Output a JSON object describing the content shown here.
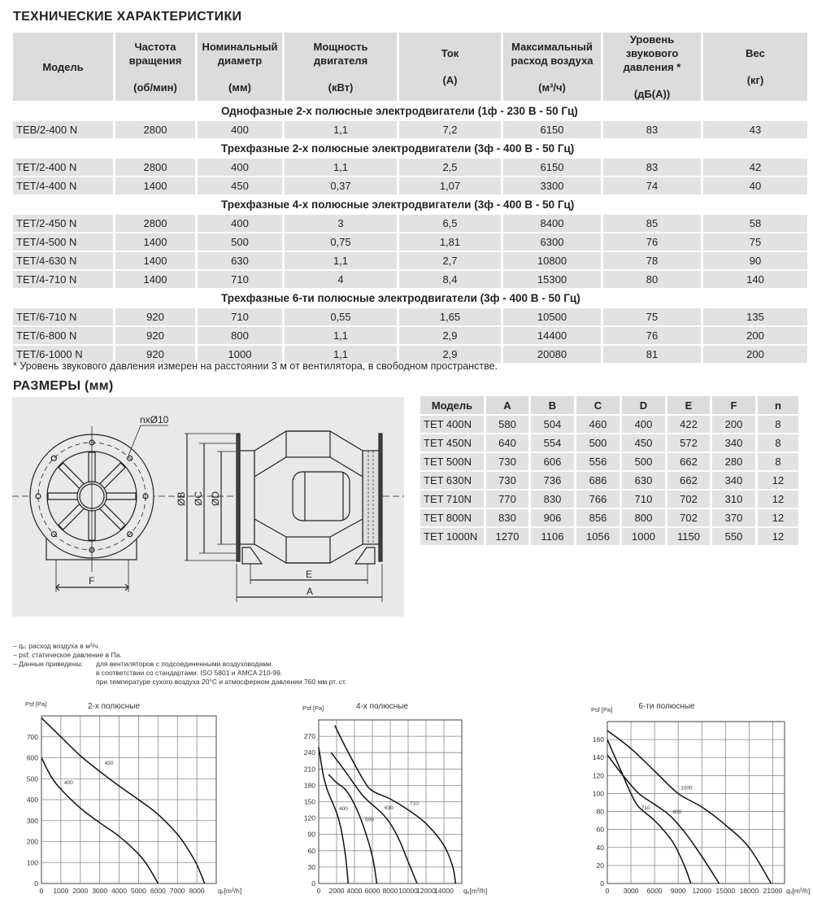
{
  "spec": {
    "title": "ТЕХНИЧЕСКИЕ ХАРАКТЕРИСТИКИ",
    "headers": [
      {
        "label": "Модель",
        "unit": ""
      },
      {
        "label": "Частота вращения",
        "unit": "(об/мин)"
      },
      {
        "label": "Номинальный диаметр",
        "unit": "(мм)"
      },
      {
        "label": "Мощность двигателя",
        "unit": "(кВт)"
      },
      {
        "label": "Ток",
        "unit": "(A)"
      },
      {
        "label": "Максимальный расход воздуха",
        "unit": "(м³/ч)"
      },
      {
        "label": "Уровень звукового давления *",
        "unit": "(дБ(A))"
      },
      {
        "label": "Вес",
        "unit": "(кг)"
      }
    ],
    "sections": [
      {
        "title": "Однофазные 2-х полюсные электродвигатели (1ф - 230 В - 50 Гц)",
        "rows": [
          [
            "TEB/2-400 N",
            "2800",
            "400",
            "1,1",
            "7,2",
            "6150",
            "83",
            "43"
          ]
        ]
      },
      {
        "title": "Трехфазные 2-х полюсные электродвигатели (3ф - 400 В - 50 Гц)",
        "rows": [
          [
            "TET/2-400 N",
            "2800",
            "400",
            "1,1",
            "2,5",
            "6150",
            "83",
            "42"
          ],
          [
            "TET/4-400 N",
            "1400",
            "450",
            "0,37",
            "1,07",
            "3300",
            "74",
            "40"
          ]
        ]
      },
      {
        "title": "Трехфазные 4-х полюсные электродвигатели (3ф - 400 В - 50 Гц)",
        "rows": [
          [
            "TET/2-450 N",
            "2800",
            "400",
            "3",
            "6,5",
            "8400",
            "85",
            "58"
          ],
          [
            "TET/4-500 N",
            "1400",
            "500",
            "0,75",
            "1,81",
            "6300",
            "76",
            "75"
          ],
          [
            "TET/4-630 N",
            "1400",
            "630",
            "1,1",
            "2,7",
            "10800",
            "78",
            "90"
          ],
          [
            "TET/4-710 N",
            "1400",
            "710",
            "4",
            "8,4",
            "15300",
            "80",
            "140"
          ]
        ]
      },
      {
        "title": "Трехфазные 6-ти полюсные электродвигатели (3ф - 400 В - 50 Гц)",
        "rows": [
          [
            "TET/6-710 N",
            "920",
            "710",
            "0,55",
            "1,65",
            "10500",
            "75",
            "135"
          ],
          [
            "TET/6-800 N",
            "920",
            "800",
            "1,1",
            "2,9",
            "14400",
            "76",
            "200"
          ],
          [
            "TET/6-1000 N",
            "920",
            "1000",
            "1,1",
            "2,9",
            "20080",
            "81",
            "200"
          ]
        ]
      }
    ],
    "footnote": "* Уровень звукового давления измерен на расстоянии 3 м от вентилятора, в свободном пространстве."
  },
  "dims": {
    "title": "РАЗМЕРЫ (мм)",
    "headers": [
      "Модель",
      "A",
      "B",
      "C",
      "D",
      "E",
      "F",
      "n"
    ],
    "rows": [
      [
        "TET 400N",
        "580",
        "504",
        "460",
        "400",
        "422",
        "200",
        "8"
      ],
      [
        "TET 450N",
        "640",
        "554",
        "500",
        "450",
        "572",
        "340",
        "8"
      ],
      [
        "TET 500N",
        "730",
        "606",
        "556",
        "500",
        "662",
        "280",
        "8"
      ],
      [
        "TET 630N",
        "730",
        "736",
        "686",
        "630",
        "662",
        "340",
        "12"
      ],
      [
        "TET 710N",
        "770",
        "830",
        "766",
        "710",
        "702",
        "310",
        "12"
      ],
      [
        "TET 800N",
        "830",
        "906",
        "856",
        "800",
        "702",
        "370",
        "12"
      ],
      [
        "TET 1000N",
        "1270",
        "1106",
        "1056",
        "1000",
        "1150",
        "550",
        "12"
      ]
    ]
  },
  "drawing": {
    "hole_label": "nxØ10",
    "labels": {
      "B": "ØB",
      "C": "ØC",
      "D": "ØD",
      "E": "E",
      "A": "A",
      "F": "F"
    }
  },
  "notes": {
    "line1": "– qᵥ: расход воздуха в м³/ч.",
    "line2": "– psf: статическое давление в Па.",
    "line3_label": "– Данные приведены:",
    "line3a": "для вентиляторов с подсоединенными воздуховодами.",
    "line3b": "в соответствии со стандартами: ISO 5801 и AMCA 210-99.",
    "line3c": "при температуре сухого воздуха 20°C и атмосферном давлении 760 мм рт. ст."
  },
  "chart_data": [
    {
      "type": "line",
      "title": "2-х полюсные",
      "ylabel": "Psf [Pa]",
      "xlabel": "qᵥ[m³/h]",
      "xlim": [
        0,
        9000
      ],
      "ylim": [
        0,
        800
      ],
      "grid": true,
      "xticks": [
        0,
        1000,
        2000,
        3000,
        4000,
        5000,
        6000,
        7000,
        8000
      ],
      "yticks": [
        0,
        100,
        200,
        300,
        400,
        500,
        600,
        700
      ],
      "series": [
        {
          "name": "450",
          "points": [
            [
              0,
              790
            ],
            [
              1000,
              700
            ],
            [
              2000,
              610
            ],
            [
              3000,
              535
            ],
            [
              4000,
              465
            ],
            [
              5000,
              400
            ],
            [
              6000,
              330
            ],
            [
              7000,
              235
            ],
            [
              7500,
              170
            ],
            [
              8000,
              90
            ],
            [
              8400,
              0
            ]
          ]
        },
        {
          "name": "400",
          "points": [
            [
              0,
              600
            ],
            [
              500,
              510
            ],
            [
              1000,
              450
            ],
            [
              2000,
              360
            ],
            [
              3000,
              290
            ],
            [
              4000,
              225
            ],
            [
              5000,
              140
            ],
            [
              5500,
              80
            ],
            [
              6000,
              0
            ]
          ]
        }
      ]
    },
    {
      "type": "line",
      "title": "4-х полюсные",
      "ylabel": "Psf [Pa]",
      "xlabel": "qᵥ[m³/h]",
      "xlim": [
        0,
        16000
      ],
      "ylim": [
        0,
        300
      ],
      "grid": true,
      "xticks": [
        0,
        2000,
        4000,
        6000,
        8000,
        10000,
        12000,
        14000
      ],
      "yticks": [
        0,
        30,
        60,
        90,
        120,
        150,
        180,
        210,
        240,
        270
      ],
      "series": [
        {
          "name": "400",
          "points": [
            [
              0,
              250
            ],
            [
              500,
              200
            ],
            [
              1000,
              170
            ],
            [
              2000,
              130
            ],
            [
              2500,
              100
            ],
            [
              3000,
              50
            ],
            [
              3300,
              0
            ]
          ]
        },
        {
          "name": "500",
          "points": [
            [
              1100,
              200
            ],
            [
              2000,
              185
            ],
            [
              3000,
              172
            ],
            [
              4000,
              145
            ],
            [
              5000,
              105
            ],
            [
              6000,
              50
            ],
            [
              6500,
              0
            ]
          ]
        },
        {
          "name": "630",
          "points": [
            [
              1400,
              240
            ],
            [
              3000,
              205
            ],
            [
              5000,
              160
            ],
            [
              7000,
              130
            ],
            [
              8000,
              110
            ],
            [
              9000,
              80
            ],
            [
              10000,
              40
            ],
            [
              11000,
              0
            ]
          ]
        },
        {
          "name": "710",
          "points": [
            [
              1800,
              290
            ],
            [
              3000,
              250
            ],
            [
              5000,
              190
            ],
            [
              6000,
              170
            ],
            [
              8000,
              155
            ],
            [
              10000,
              135
            ],
            [
              12000,
              110
            ],
            [
              14000,
              70
            ],
            [
              15000,
              30
            ],
            [
              15300,
              0
            ]
          ]
        }
      ]
    },
    {
      "type": "line",
      "title": "6-ти полюсные",
      "ylabel": "Psf [Pa]",
      "xlabel": "qᵥ[m³/h]",
      "xlim": [
        0,
        22500
      ],
      "ylim": [
        0,
        180
      ],
      "grid": true,
      "xticks": [
        0,
        3000,
        6000,
        9000,
        12000,
        15000,
        18000,
        21000
      ],
      "yticks": [
        0,
        20,
        40,
        60,
        80,
        100,
        120,
        140,
        160
      ],
      "series": [
        {
          "name": "710",
          "points": [
            [
              0,
              160
            ],
            [
              1000,
              140
            ],
            [
              2000,
              120
            ],
            [
              3000,
              100
            ],
            [
              4000,
              85
            ],
            [
              6000,
              70
            ],
            [
              8000,
              50
            ],
            [
              9000,
              35
            ],
            [
              10000,
              15
            ],
            [
              10600,
              0
            ]
          ]
        },
        {
          "name": "800",
          "points": [
            [
              0,
              143
            ],
            [
              2000,
              120
            ],
            [
              4000,
              100
            ],
            [
              6000,
              88
            ],
            [
              8000,
              75
            ],
            [
              10000,
              55
            ],
            [
              12000,
              30
            ],
            [
              14200,
              0
            ]
          ]
        },
        {
          "name": "1000",
          "points": [
            [
              0,
              170
            ],
            [
              3000,
              150
            ],
            [
              6000,
              125
            ],
            [
              9000,
              100
            ],
            [
              12000,
              85
            ],
            [
              15000,
              65
            ],
            [
              18000,
              40
            ],
            [
              20800,
              0
            ]
          ]
        }
      ]
    }
  ]
}
